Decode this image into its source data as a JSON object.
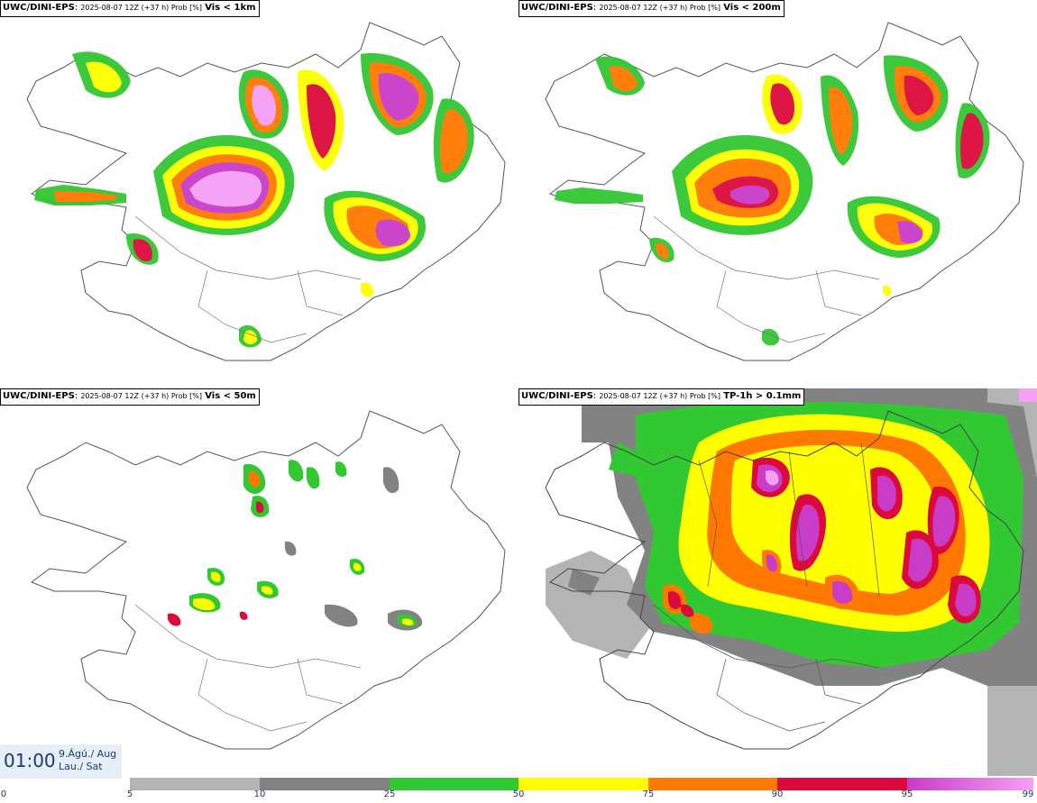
{
  "panels": [
    {
      "source": "UWC/DINI-EPS",
      "meta": "2025-08-07 12Z (+37 h) Prob [%]",
      "variable": "Vis < 1km"
    },
    {
      "source": "UWC/DINI-EPS",
      "meta": "2025-08-07 12Z (+37 h) Prob [%]",
      "variable": "Vis < 200m"
    },
    {
      "source": "UWC/DINI-EPS",
      "meta": "2025-08-07 12Z (+37 h) Prob [%]",
      "variable": "Vis < 50m"
    },
    {
      "source": "UWC/DINI-EPS",
      "meta": "2025-08-07 12Z (+37 h) Prob [%]",
      "variable": "TP-1h > 0.1mm"
    }
  ],
  "valid_time": {
    "time": "01:00",
    "date_line1": "9.Ágú./ Aug",
    "date_line2": "Lau./ Sat"
  },
  "legend": {
    "ticks": [
      "0",
      "5",
      "10",
      "25",
      "50",
      "75",
      "90",
      "95",
      "99"
    ],
    "colors": [
      "#ffffff",
      "#b4b4b4",
      "#828282",
      "#32c832",
      "#ffff00",
      "#ff7800",
      "#dc0a3c",
      "#c83cc8",
      "#f5a0f5"
    ]
  },
  "colors": {
    "gray_light": "#b4b4b4",
    "gray_dark": "#828282",
    "green": "#32c832",
    "yellow": "#ffff00",
    "orange": "#ff7800",
    "red": "#dc0a3c",
    "purple": "#c83cc8",
    "pink": "#f5a0f5"
  }
}
